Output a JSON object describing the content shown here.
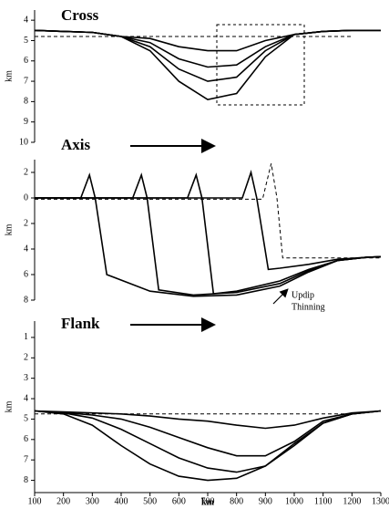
{
  "chart_data": [
    {
      "type": "line",
      "title": "Cross",
      "y_label": "km",
      "inverted": true,
      "xlim": [
        100,
        1300
      ],
      "ylim": [
        3.5,
        10
      ],
      "yticks": [
        4,
        5,
        6,
        7,
        8,
        9,
        10
      ],
      "x": [
        100,
        200,
        300,
        400,
        500,
        600,
        700,
        800,
        900,
        1000,
        1100,
        1200,
        1300
      ],
      "series": [
        {
          "color": "#000000",
          "style": "dashed",
          "x": [
            100,
            1200
          ],
          "values": [
            4.8,
            4.8
          ]
        },
        {
          "color": "#000000",
          "style": "solid",
          "values": [
            4.5,
            4.55,
            4.6,
            4.8,
            5.5,
            7.0,
            7.9,
            7.6,
            5.8,
            4.7,
            4.55,
            4.5,
            4.5
          ]
        },
        {
          "color": "#000000",
          "style": "solid",
          "values": [
            4.5,
            4.55,
            4.6,
            4.8,
            5.3,
            6.4,
            7.0,
            6.8,
            5.5,
            4.7,
            4.55,
            4.5,
            4.5
          ]
        },
        {
          "color": "#000000",
          "style": "solid",
          "values": [
            4.5,
            4.55,
            4.6,
            4.8,
            5.1,
            5.9,
            6.3,
            6.2,
            5.3,
            4.7,
            4.55,
            4.5,
            4.5
          ]
        },
        {
          "color": "#000000",
          "style": "solid",
          "values": [
            4.5,
            4.55,
            4.6,
            4.8,
            4.9,
            5.3,
            5.5,
            5.5,
            5.0,
            4.7,
            4.55,
            4.5,
            4.5
          ]
        }
      ]
    },
    {
      "type": "line",
      "title": "Axis",
      "y_label": "km",
      "inverted": true,
      "xlim": [
        100,
        1300
      ],
      "ylim": [
        -3,
        8
      ],
      "yticks": [
        {
          "value": -2,
          "label": "2"
        },
        0,
        2,
        4,
        6,
        8
      ],
      "annotation": [
        "Updip",
        "Thinning"
      ],
      "series": [
        {
          "color": "#000000",
          "style": "solid",
          "x": [
            100,
            260,
            290,
            310,
            350,
            500,
            650,
            800,
            950,
            1050,
            1150,
            1250,
            1300
          ],
          "values": [
            0,
            0,
            -1.8,
            0,
            6.0,
            7.3,
            7.7,
            7.6,
            6.9,
            5.8,
            4.9,
            4.65,
            4.6
          ]
        },
        {
          "color": "#000000",
          "style": "solid",
          "x": [
            100,
            440,
            470,
            490,
            530,
            650,
            800,
            950,
            1050,
            1150,
            1250,
            1300
          ],
          "values": [
            0,
            0,
            -1.8,
            0,
            7.2,
            7.6,
            7.4,
            6.7,
            5.7,
            4.9,
            4.65,
            4.6
          ]
        },
        {
          "color": "#000000",
          "style": "solid",
          "x": [
            100,
            630,
            660,
            680,
            720,
            800,
            950,
            1050,
            1150,
            1250,
            1300
          ],
          "values": [
            0,
            0,
            -1.8,
            0,
            7.5,
            7.3,
            6.5,
            5.6,
            4.9,
            4.65,
            4.6
          ]
        },
        {
          "color": "#000000",
          "style": "solid",
          "x": [
            100,
            820,
            850,
            870,
            910,
            950,
            1050,
            1150,
            1250,
            1300
          ],
          "values": [
            0,
            0,
            -2.0,
            0,
            5.6,
            5.5,
            5.2,
            4.8,
            4.65,
            4.6
          ]
        },
        {
          "color": "#000000",
          "style": "dashed",
          "x": [
            100,
            890,
            920,
            940,
            960,
            1300
          ],
          "values": [
            0.1,
            0.1,
            -2.7,
            0,
            4.7,
            4.7
          ]
        }
      ]
    },
    {
      "type": "line",
      "title": "Flank",
      "y_label": "km",
      "x_label": "km",
      "inverted": true,
      "xlim": [
        100,
        1300
      ],
      "ylim": [
        0.2,
        8.6
      ],
      "yticks": [
        1,
        2,
        3,
        4,
        5,
        6,
        7,
        8
      ],
      "xticks": [
        100,
        200,
        300,
        400,
        500,
        600,
        700,
        800,
        900,
        1000,
        1100,
        1200,
        1300
      ],
      "x": [
        100,
        200,
        300,
        400,
        500,
        600,
        700,
        800,
        900,
        1000,
        1100,
        1200,
        1300
      ],
      "series": [
        {
          "color": "#000000",
          "style": "dashed",
          "x": [
            100,
            1200
          ],
          "values": [
            4.75,
            4.75
          ]
        },
        {
          "color": "#000000",
          "style": "solid",
          "values": [
            4.6,
            4.75,
            5.3,
            6.3,
            7.2,
            7.8,
            8.0,
            7.9,
            7.3,
            6.2,
            5.2,
            4.75,
            4.6
          ]
        },
        {
          "color": "#000000",
          "style": "solid",
          "values": [
            4.6,
            4.7,
            4.95,
            5.5,
            6.2,
            6.9,
            7.4,
            7.6,
            7.3,
            6.3,
            5.2,
            4.75,
            4.6
          ]
        },
        {
          "color": "#000000",
          "style": "solid",
          "values": [
            4.6,
            4.68,
            4.8,
            5.0,
            5.4,
            5.9,
            6.4,
            6.8,
            6.8,
            6.1,
            5.1,
            4.75,
            4.6
          ]
        },
        {
          "color": "#000000",
          "style": "solid",
          "values": [
            4.6,
            4.65,
            4.7,
            4.75,
            4.85,
            5.0,
            5.1,
            5.3,
            5.45,
            5.3,
            4.95,
            4.7,
            4.6
          ]
        }
      ]
    }
  ]
}
